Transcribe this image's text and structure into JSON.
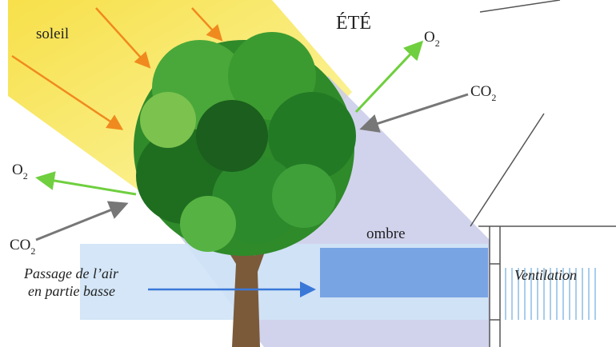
{
  "title": "ÉTÉ",
  "labels": {
    "sun": "soleil",
    "shade": "ombre",
    "ventilation": "Ventilation",
    "airflow": [
      "Passage de l’air",
      "en partie basse"
    ]
  },
  "gases": [
    {
      "symbol": "O",
      "subscript": "2"
    },
    {
      "symbol": "CO",
      "subscript": "2"
    },
    {
      "symbol": "O",
      "subscript": "2"
    },
    {
      "symbol": "CO",
      "subscript": "2"
    }
  ]
}
